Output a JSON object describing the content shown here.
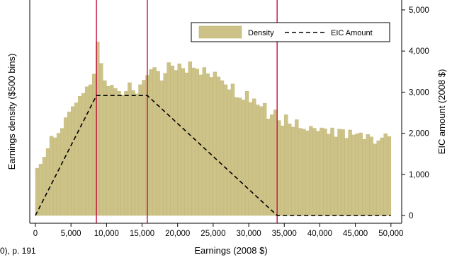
{
  "chart_data": {
    "type": "bar",
    "xlabel": "Earnings (2008 $)",
    "ylabel_left": "Earnings density ($500 bins)",
    "ylabel_right": "EIC amount (2008 $)",
    "source_note": "0), p. 191",
    "xlim": [
      0,
      50000
    ],
    "ylim": [
      0,
      5000
    ],
    "x_ticks": [
      0,
      5000,
      10000,
      15000,
      20000,
      25000,
      30000,
      35000,
      40000,
      45000,
      50000
    ],
    "x_tick_labels": [
      "0",
      "5,000",
      "10,000",
      "15,000",
      "20,000",
      "25,000",
      "30,000",
      "35,000",
      "40,000",
      "45,000",
      "50,000"
    ],
    "y_ticks": [
      0,
      1000,
      2000,
      3000,
      4000,
      5000
    ],
    "y_tick_labels": [
      "0",
      "1,000",
      "2,000",
      "3,000",
      "4,000",
      "5,000"
    ],
    "vertical_lines": [
      8580,
      15740,
      33995
    ],
    "grid": false,
    "legend_position": "top-right",
    "bin_width": 500,
    "colors": {
      "bar_fill": "#cdc388",
      "bar_stroke": "#bdb372",
      "vline": "#c4113b",
      "eic_line": "#000000"
    },
    "series": [
      {
        "name": "Density",
        "type": "bar",
        "values": [
          1150,
          1250,
          1420,
          1630,
          1930,
          1890,
          2000,
          2120,
          2380,
          2520,
          2650,
          2740,
          2900,
          2970,
          3130,
          3180,
          3440,
          4220,
          3700,
          3280,
          3140,
          3170,
          3090,
          3020,
          2930,
          3020,
          3230,
          3040,
          2960,
          3180,
          3290,
          3410,
          3550,
          3600,
          3510,
          3280,
          3460,
          3720,
          3640,
          3530,
          3690,
          3580,
          3470,
          3740,
          3590,
          3560,
          3420,
          3600,
          3450,
          3360,
          3490,
          3370,
          3280,
          3180,
          3060,
          3200,
          2870,
          2860,
          2810,
          3020,
          2750,
          2840,
          2690,
          2650,
          2730,
          2350,
          2450,
          2570,
          2310,
          2180,
          2450,
          2230,
          2150,
          2330,
          2120,
          2100,
          2060,
          2170,
          2120,
          2050,
          2130,
          2110,
          1980,
          2130,
          1910,
          2100,
          2090,
          1880,
          2080,
          1960,
          1990,
          2010,
          1850,
          1970,
          1910,
          1740,
          1820,
          1890,
          1990,
          1920
        ]
      },
      {
        "name": "EIC Amount",
        "type": "line",
        "x": [
          0,
          8580,
          15740,
          33995,
          50000
        ],
        "values": [
          0,
          2917,
          2917,
          0,
          0
        ]
      }
    ]
  }
}
